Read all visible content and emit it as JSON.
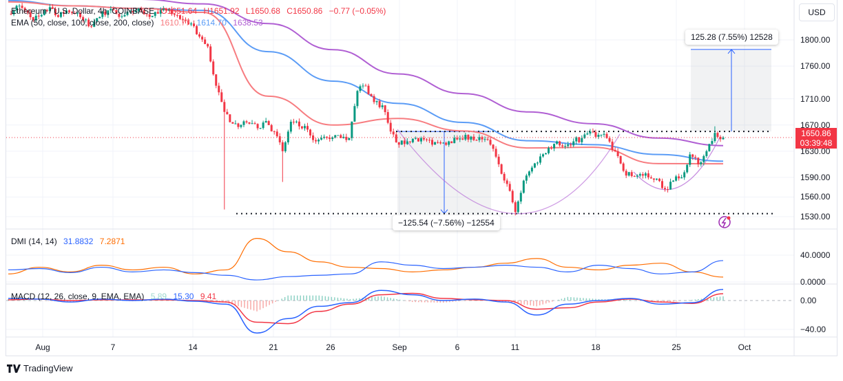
{
  "header": {
    "symbol_line": "Ethereum / U.S. Dollar, 4h, COINBASE",
    "open": "O1651.64",
    "high": "H1651.92",
    "low": "L1650.68",
    "close": "C1650.86",
    "change": "−0.77 (−0.05%)",
    "ema_label": "EMA (50, close, 100, close, 200, close)",
    "ema50": "1610.77",
    "ema100": "1614.70",
    "ema200": "1638.53"
  },
  "currency_button": "USD",
  "price_tag": {
    "price": "1650.86",
    "countdown": "03:39:48"
  },
  "price_axis": [
    "1800.00",
    "1760.00",
    "1710.00",
    "1670.00",
    "1630.00",
    "1590.00",
    "1560.00",
    "1530.00"
  ],
  "time_axis": [
    "Aug",
    "7",
    "14",
    "21",
    "26",
    "Sep",
    "6",
    "11",
    "18",
    "25",
    "Oct"
  ],
  "measure_up": {
    "label": "125.28 (7.55%) 12528",
    "from": 1660.1,
    "to": 1785.4
  },
  "measure_down": {
    "label": "−125.54 (−7.56%) −12554",
    "from": 1660.1,
    "to": 1534.6
  },
  "dmi": {
    "label": "DMI (14, 14)",
    "plus": "31.8832",
    "minus": "7.2871",
    "axis": [
      "40.0000",
      "0.0000"
    ]
  },
  "macd": {
    "label": "MACD (12, 26, close, 9, EMA, EMA)",
    "hist": "5.89",
    "macd": "15.30",
    "signal": "9.41",
    "axis": [
      "0.00",
      "−40.00"
    ]
  },
  "branding": "TradingView",
  "colors": {
    "up": "#089981",
    "down": "#f23645",
    "ema50": "#f77c80",
    "ema100": "#5b9cf6",
    "ema200": "#b05fd3",
    "dmi_plus": "#2962ff",
    "dmi_minus": "#ff6d00",
    "macd": "#2962ff",
    "signal": "#f23645",
    "accent": "#2962ff"
  },
  "chart_data": {
    "type": "candlestick",
    "symbol": "ETHUSD",
    "interval": "4h",
    "closes": [
      1840,
      1852,
      1845,
      1830,
      1838,
      1850,
      1835,
      1845,
      1840,
      1830,
      1820,
      1835,
      1845,
      1840,
      1838,
      1842,
      1845,
      1835,
      1840,
      1845,
      1838,
      1830,
      1825,
      1805,
      1790,
      1730,
      1690,
      1672,
      1670,
      1672,
      1665,
      1676,
      1660,
      1630,
      1675,
      1668,
      1663,
      1645,
      1652,
      1651,
      1650,
      1650,
      1722,
      1730,
      1705,
      1700,
      1660,
      1640,
      1645,
      1650,
      1648,
      1640,
      1642,
      1645,
      1648,
      1655,
      1647,
      1648,
      1640,
      1610,
      1580,
      1537,
      1585,
      1605,
      1622,
      1635,
      1645,
      1638,
      1645,
      1650,
      1660,
      1655,
      1650,
      1630,
      1600,
      1592,
      1595,
      1590,
      1588,
      1572,
      1585,
      1590,
      1625,
      1610,
      1630,
      1658,
      1650.86
    ],
    "wick_extremes": [
      {
        "at": 26,
        "low": 1541
      },
      {
        "at": 33,
        "low": 1583
      },
      {
        "at": 61,
        "low": 1532
      },
      {
        "at": 85,
        "high": 1668
      }
    ],
    "ema50": [
      1858,
      1852,
      1848,
      1842,
      1714,
      1670,
      1680,
      1661,
      1635,
      1636,
      1611,
      1610.77
    ],
    "ema100": [
      1860,
      1852,
      1848,
      1845,
      1782,
      1737,
      1703,
      1674,
      1646,
      1640,
      1625,
      1614.7
    ],
    "ema200": [
      1875,
      1868,
      1862,
      1855,
      1825,
      1785,
      1748,
      1718,
      1690,
      1672,
      1650,
      1638.53
    ],
    "levels": [
      1660.1,
      1534.6
    ],
    "price_range": [
      1530,
      1800
    ],
    "dmi_plus": [
      18,
      20,
      14,
      22,
      15,
      18,
      14,
      10,
      3,
      8,
      10,
      12,
      30,
      25,
      20,
      22,
      25,
      22,
      15,
      25,
      20,
      12,
      15,
      31.88
    ],
    "dmi_minus": [
      12,
      22,
      15,
      25,
      18,
      22,
      12,
      18,
      65,
      45,
      30,
      22,
      20,
      15,
      18,
      22,
      28,
      35,
      22,
      18,
      25,
      28,
      15,
      7.29
    ],
    "macd_line": [
      3,
      2,
      -2,
      2,
      0,
      2,
      -1,
      -5,
      -45,
      -25,
      -8,
      -3,
      14,
      8,
      0,
      2,
      -2,
      -20,
      -5,
      0,
      3,
      -5,
      -3,
      15.3
    ],
    "signal_line": [
      1,
      2,
      0,
      1,
      1,
      1,
      0,
      -2,
      -30,
      -32,
      -15,
      -5,
      8,
      10,
      3,
      1,
      0,
      -12,
      -10,
      -2,
      2,
      -2,
      -4,
      9.41
    ]
  }
}
